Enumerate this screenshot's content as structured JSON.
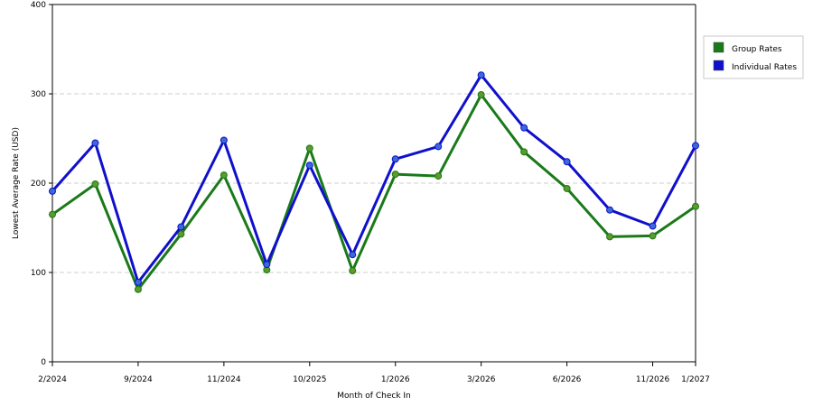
{
  "chart_data": {
    "type": "line",
    "title": "",
    "xlabel": "Month of Check In",
    "ylabel": "Lowest Average Rate (USD)",
    "ylim": [
      0,
      400
    ],
    "yticks": [
      0,
      100,
      200,
      300,
      400
    ],
    "grid": true,
    "legend_position": "top-right",
    "x_tick_labels": [
      {
        "index": 0,
        "label": "2/2024"
      },
      {
        "index": 2,
        "label": "9/2024"
      },
      {
        "index": 4,
        "label": "11/2024"
      },
      {
        "index": 6,
        "label": "10/2025"
      },
      {
        "index": 8,
        "label": "1/2026"
      },
      {
        "index": 10,
        "label": "3/2026"
      },
      {
        "index": 12,
        "label": "6/2026"
      },
      {
        "index": 14,
        "label": "11/2026"
      },
      {
        "index": 15,
        "label": "1/2027"
      }
    ],
    "point_count": 16,
    "series": [
      {
        "name": "Group Rates",
        "color": "#1a7a1a",
        "marker_color": "#5c9a2a",
        "values": [
          165,
          199,
          81,
          143,
          209,
          103,
          239,
          102,
          210,
          208,
          299,
          235,
          194,
          140,
          141,
          174
        ]
      },
      {
        "name": "Individual Rates",
        "color": "#1010cc",
        "marker_color": "#3a6ad8",
        "values": [
          191,
          245,
          89,
          151,
          248,
          109,
          220,
          120,
          227,
          241,
          321,
          262,
          224,
          170,
          152,
          242
        ]
      }
    ]
  }
}
